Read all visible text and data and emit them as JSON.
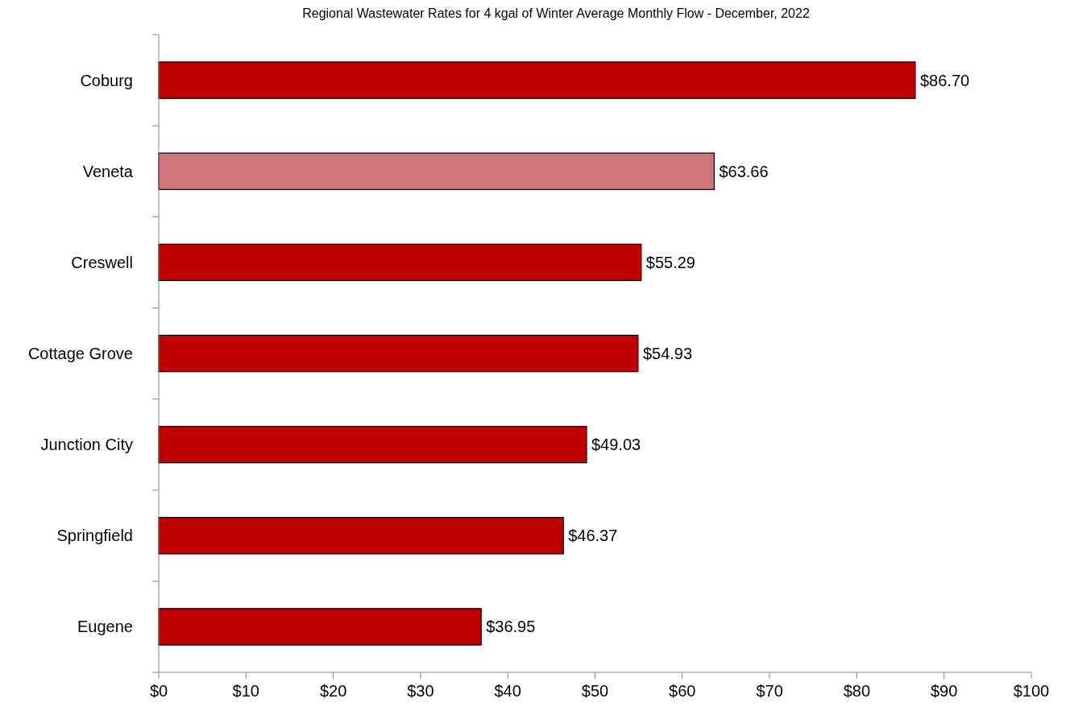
{
  "chart_data": {
    "type": "bar",
    "orientation": "horizontal",
    "title": "Regional Wastewater Rates for 4 kgal of Winter Average Monthly Flow - December, 2022",
    "categories": [
      "Coburg",
      "Veneta",
      "Creswell",
      "Cottage Grove",
      "Junction City",
      "Springfield",
      "Eugene"
    ],
    "values": [
      86.7,
      63.66,
      55.29,
      54.93,
      49.03,
      46.37,
      36.95
    ],
    "colors": [
      "#c00000",
      "#cf7478",
      "#c00000",
      "#c00000",
      "#c00000",
      "#c00000",
      "#c00000"
    ],
    "value_labels": [
      "$86.70",
      "$63.66",
      "$55.29",
      "$54.93",
      "$49.03",
      "$46.37",
      "$36.95"
    ],
    "xlim": [
      0,
      100
    ],
    "xticks": [
      {
        "value": 0,
        "label": "$0"
      },
      {
        "value": 10,
        "label": "$10"
      },
      {
        "value": 20,
        "label": "$20"
      },
      {
        "value": 30,
        "label": "$30"
      },
      {
        "value": 40,
        "label": "$40"
      },
      {
        "value": 50,
        "label": "$50"
      },
      {
        "value": 60,
        "label": "$60"
      },
      {
        "value": 70,
        "label": "$70"
      },
      {
        "value": 80,
        "label": "$80"
      },
      {
        "value": 90,
        "label": "$90"
      },
      {
        "value": 100,
        "label": "$100"
      }
    ],
    "grid": false
  }
}
